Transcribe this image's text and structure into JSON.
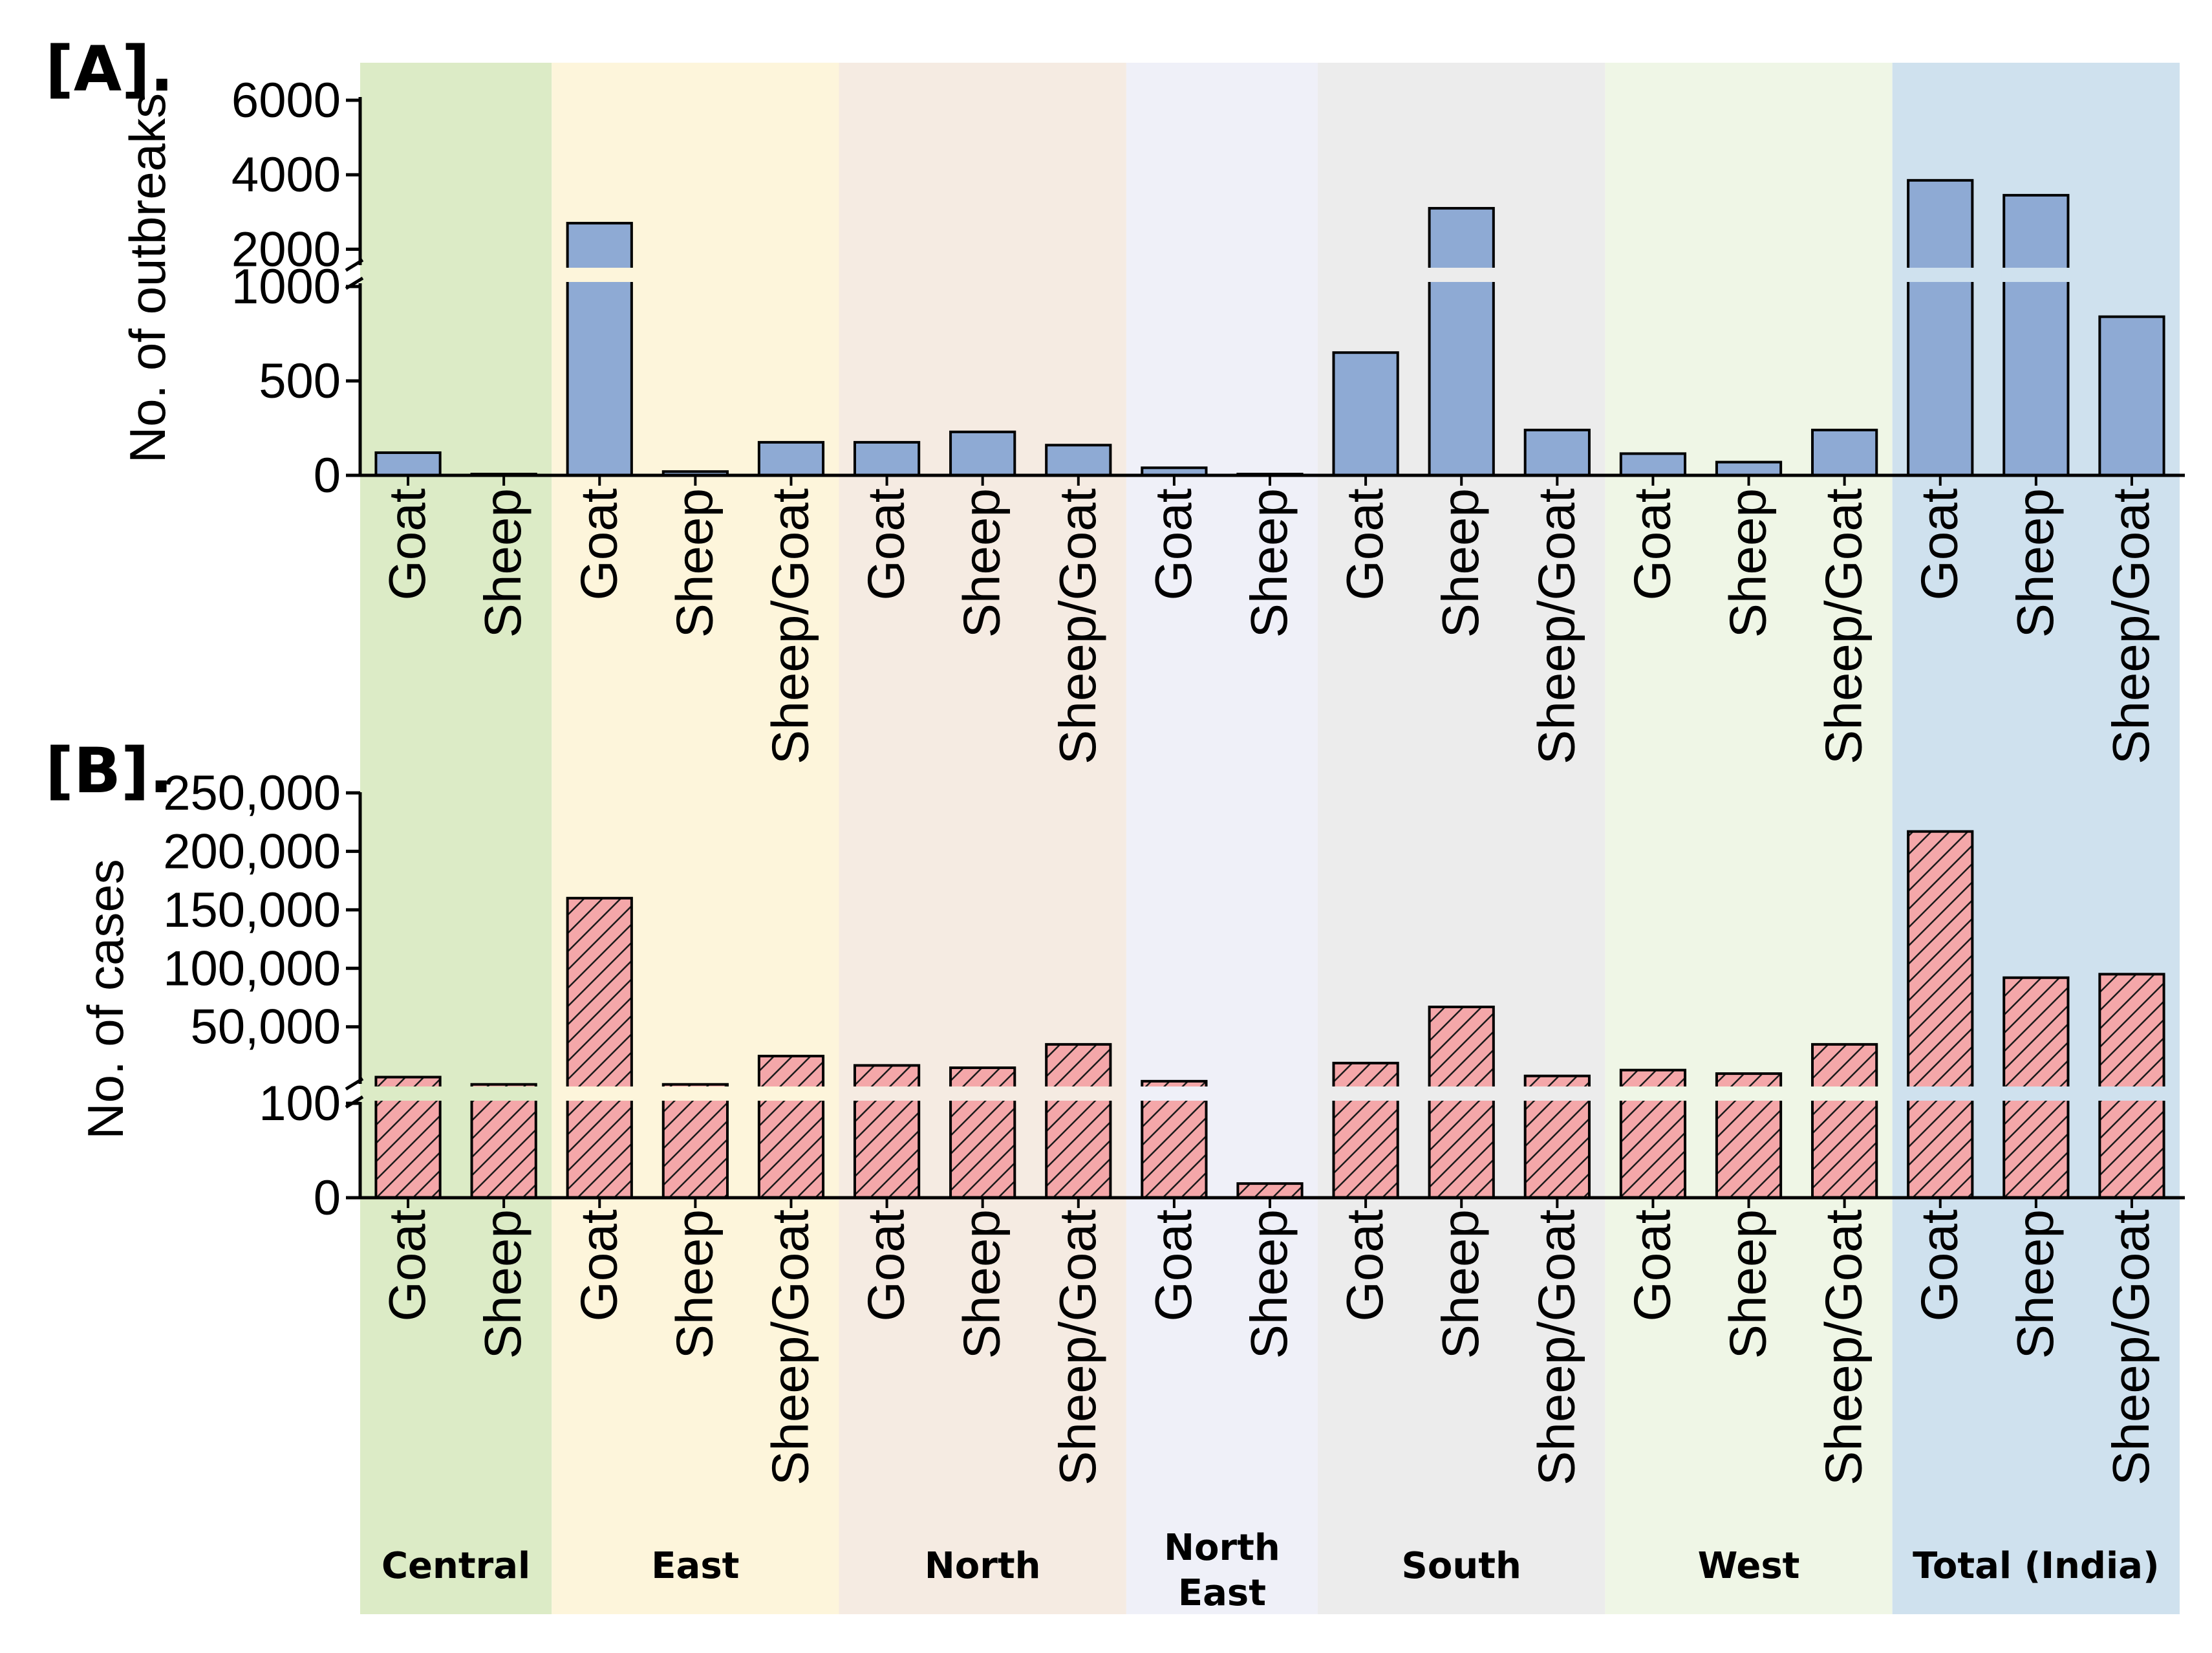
{
  "figure": {
    "regions": [
      "Central",
      "East",
      "North",
      "North East",
      "South",
      "West",
      "Total (India)"
    ],
    "region_colors": [
      "#dcebc6",
      "#fdf5db",
      "#f5ebe2",
      "#eff0f8",
      "#ececec",
      "#eff6e6",
      "#cfe1ee"
    ],
    "groups": [
      [
        "Goat",
        "Sheep"
      ],
      [
        "Goat",
        "Sheep",
        "Sheep/Goat"
      ],
      [
        "Goat",
        "Sheep",
        "Sheep/Goat"
      ],
      [
        "Goat",
        "Sheep"
      ],
      [
        "Goat",
        "Sheep",
        "Sheep/Goat"
      ],
      [
        "Goat",
        "Sheep",
        "Sheep/Goat"
      ],
      [
        "Goat",
        "Sheep",
        "Sheep/Goat"
      ]
    ]
  },
  "chart_data": [
    {
      "type": "bar",
      "panel_label": "[A].",
      "ylabel": "No. of outbreaks",
      "y_axis_break": true,
      "segments": [
        {
          "range": [
            0,
            1000
          ],
          "ticks": [
            "0",
            "500",
            "1000"
          ]
        },
        {
          "range": [
            1000,
            6000
          ],
          "ticks": [
            "2000",
            "4000",
            "6000"
          ]
        }
      ],
      "categories": [
        "Goat",
        "Sheep",
        "Goat",
        "Sheep",
        "Sheep/Goat",
        "Goat",
        "Sheep",
        "Sheep/Goat",
        "Goat",
        "Sheep",
        "Goat",
        "Sheep",
        "Sheep/Goat",
        "Goat",
        "Sheep",
        "Sheep/Goat",
        "Goat",
        "Sheep",
        "Sheep/Goat"
      ],
      "values": [
        120,
        5,
        2700,
        20,
        175,
        175,
        230,
        160,
        40,
        0,
        650,
        3100,
        240,
        115,
        70,
        240,
        3850,
        3450,
        840
      ],
      "bar_color": "#8eaad4",
      "pattern": "solid"
    },
    {
      "type": "bar",
      "panel_label": "[B].",
      "ylabel": "No. of cases",
      "y_axis_break": true,
      "segments": [
        {
          "range": [
            0,
            100
          ],
          "ticks": [
            "0",
            "100"
          ]
        },
        {
          "range": [
            100,
            250000
          ],
          "ticks": [
            "50,000",
            "100,000",
            "150,000",
            "200,000",
            "250,000"
          ]
        }
      ],
      "categories": [
        "Goat",
        "Sheep",
        "Goat",
        "Sheep",
        "Sheep/Goat",
        "Goat",
        "Sheep",
        "Sheep/Goat",
        "Goat",
        "Sheep",
        "Goat",
        "Sheep",
        "Sheep/Goat",
        "Goat",
        "Sheep",
        "Sheep/Goat",
        "Goat",
        "Sheep",
        "Sheep/Goat"
      ],
      "values": [
        7000,
        800,
        160000,
        800,
        25000,
        17000,
        15000,
        35000,
        3500,
        15,
        19000,
        67000,
        8000,
        13000,
        10000,
        35000,
        217000,
        92000,
        95000
      ],
      "bar_color": "#f4a7a9",
      "pattern": "hatched"
    }
  ]
}
